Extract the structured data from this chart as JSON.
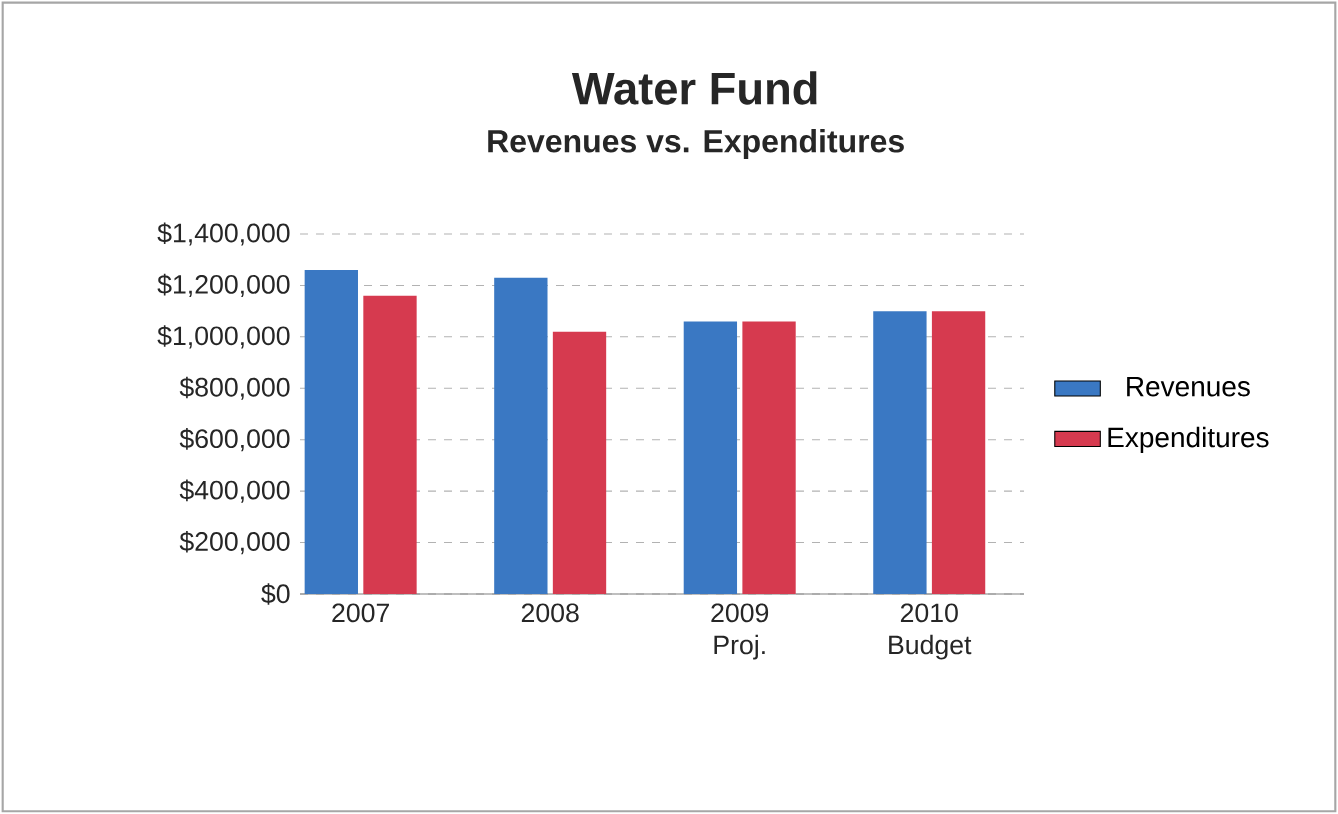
{
  "chart_data": {
    "type": "bar",
    "title": "Water Fund",
    "subtitle": "Revenues vs. Expenditures",
    "categories": [
      "2007",
      "2008",
      "2009 Proj.",
      "2010 Budget"
    ],
    "series": [
      {
        "name": "Revenues",
        "color": "#3a78c3",
        "values": [
          1260000,
          1230000,
          1060000,
          1100000
        ]
      },
      {
        "name": "Expenditures",
        "color": "#d63a4f",
        "values": [
          1160000,
          1020000,
          1060000,
          1100000
        ]
      }
    ],
    "ylim": [
      0,
      1400000
    ],
    "yticks": [
      {
        "value": 0,
        "label": "$0"
      },
      {
        "value": 200000,
        "label": "$200,000"
      },
      {
        "value": 400000,
        "label": "$400,000"
      },
      {
        "value": 600000,
        "label": "$600,000"
      },
      {
        "value": 800000,
        "label": "$800,000"
      },
      {
        "value": 1000000,
        "label": "$1,000,000"
      },
      {
        "value": 1200000,
        "label": "$1,200,000"
      },
      {
        "value": 1400000,
        "label": "$1,400,000"
      }
    ],
    "grid": "y",
    "legend": "right"
  }
}
